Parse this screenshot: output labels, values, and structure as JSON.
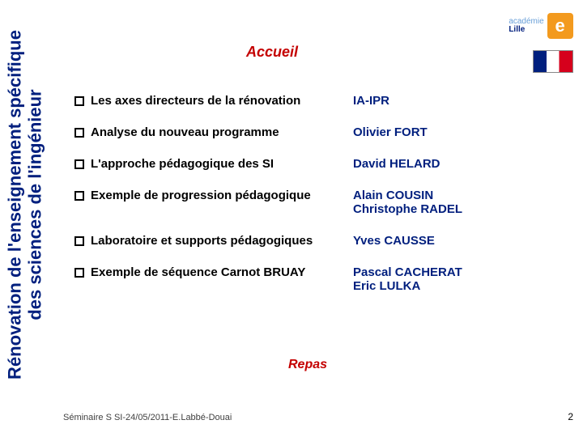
{
  "colors": {
    "sidebar_text": "#001f7e",
    "title": "#c40000",
    "topic": "#000000",
    "presenter": "#001f7e",
    "footer": "#404040",
    "academie_text": "#6aa0d8",
    "academie_lille": "#001f7e",
    "e_badge_bg": "#f39a1e"
  },
  "fonts": {
    "sidebar_size": 22,
    "title_size": 18,
    "body_size": 15,
    "subheading_size": 16
  },
  "sidebar": {
    "line1": "Rénovation de l'enseignement spécifique",
    "line2": "des sciences de l'ingénieur"
  },
  "logos": {
    "academie_label": "académie",
    "academie_city": "Lille",
    "e_letter": "e"
  },
  "title": "Accueil",
  "items": [
    {
      "topic": "Les axes directeurs de la rénovation",
      "presenter": "IA-IPR"
    },
    {
      "topic": "Analyse du nouveau programme",
      "presenter": "Olivier FORT"
    },
    {
      "topic": "L'approche pédagogique des SI",
      "presenter": "David HELARD"
    },
    {
      "topic": "Exemple de progression pédagogique",
      "presenter": "Alain COUSIN\nChristophe RADEL"
    },
    {
      "topic": "Laboratoire et supports pédagogiques",
      "presenter": "Yves CAUSSE"
    },
    {
      "topic": "Exemple de séquence Carnot BRUAY",
      "presenter": "Pascal CACHERAT\nEric LULKA"
    }
  ],
  "subheading": "Repas",
  "footer": "Séminaire S SI-24/05/2011-E.Labbé-Douai",
  "page_number": "2"
}
